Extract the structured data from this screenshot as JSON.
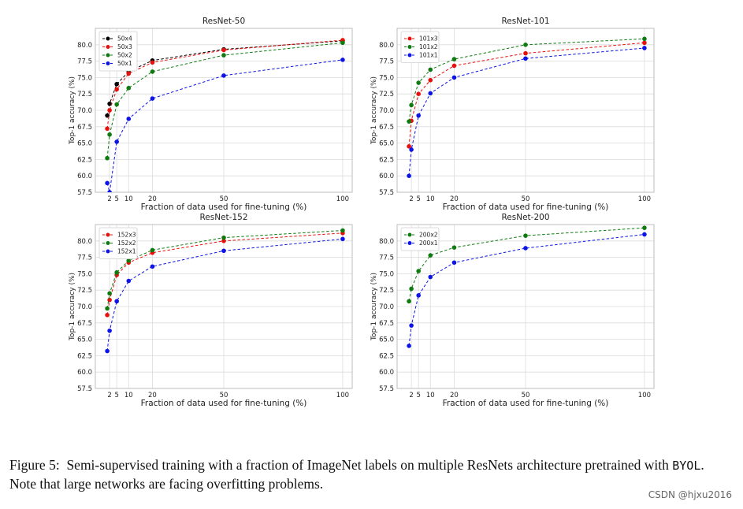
{
  "chart_data": [
    {
      "type": "line",
      "title": "ResNet-50",
      "xlabel": "Fraction of data used for fine-tuning (%)",
      "ylabel": "Top-1 accuracy (%)",
      "x": [
        1,
        2,
        5,
        10,
        20,
        50,
        100
      ],
      "xticks": [
        2,
        5,
        10,
        20,
        50,
        100
      ],
      "xtick_labels": [
        "2",
        "5",
        "10",
        "20",
        "50",
        "100"
      ],
      "xlim": [
        -4,
        104
      ],
      "ylim": [
        57.5,
        82.5
      ],
      "yticks": [
        57.5,
        60.0,
        62.5,
        65.0,
        67.5,
        70.0,
        72.5,
        75.0,
        77.5,
        80.0
      ],
      "ytick_labels": [
        "57.5",
        "60.0",
        "62.5",
        "65.0",
        "67.5",
        "70.0",
        "72.5",
        "75.0",
        "77.5",
        "80.0"
      ],
      "legend": "top-left",
      "series": [
        {
          "name": "50x4",
          "color": "#000000",
          "values": [
            69.2,
            71.0,
            74.0,
            75.9,
            77.6,
            79.3,
            80.6
          ]
        },
        {
          "name": "50x3",
          "color": "#e8100c",
          "values": [
            67.2,
            70.0,
            73.2,
            75.6,
            77.3,
            79.2,
            80.7
          ]
        },
        {
          "name": "50x2",
          "color": "#0f7a0f",
          "values": [
            62.7,
            66.3,
            70.9,
            73.4,
            75.9,
            78.4,
            80.3
          ]
        },
        {
          "name": "50x1",
          "color": "#0d14e6",
          "values": [
            58.9,
            57.5,
            65.2,
            68.7,
            71.8,
            75.3,
            77.7
          ]
        }
      ]
    },
    {
      "type": "line",
      "title": "ResNet-101",
      "xlabel": "Fraction of data used for fine-tuning (%)",
      "ylabel": "Top-1 accuracy (%)",
      "x": [
        1,
        2,
        5,
        10,
        20,
        50,
        100
      ],
      "xticks": [
        2,
        5,
        10,
        20,
        50,
        100
      ],
      "xtick_labels": [
        "2",
        "5",
        "10",
        "20",
        "50",
        "100"
      ],
      "xlim": [
        -4,
        104
      ],
      "ylim": [
        57.5,
        82.5
      ],
      "yticks": [
        57.5,
        60.0,
        62.5,
        65.0,
        67.5,
        70.0,
        72.5,
        75.0,
        77.5,
        80.0
      ],
      "ytick_labels": [
        "57.5",
        "60.0",
        "62.5",
        "65.0",
        "67.5",
        "70.0",
        "72.5",
        "75.0",
        "77.5",
        "80.0"
      ],
      "legend": "top-left",
      "series": [
        {
          "name": "101x3",
          "color": "#e8100c",
          "values": [
            64.5,
            68.4,
            72.5,
            74.6,
            76.8,
            78.7,
            80.3
          ]
        },
        {
          "name": "101x2",
          "color": "#0f7a0f",
          "values": [
            68.3,
            70.8,
            74.2,
            76.2,
            77.8,
            80.0,
            80.9
          ]
        },
        {
          "name": "101x1",
          "color": "#0d14e6",
          "values": [
            60.0,
            64.0,
            69.2,
            72.6,
            75.0,
            77.9,
            79.5
          ]
        }
      ]
    },
    {
      "type": "line",
      "title": "ResNet-152",
      "xlabel": "Fraction of data used for fine-tuning (%)",
      "ylabel": "Top-1 accuracy (%)",
      "x": [
        1,
        2,
        5,
        10,
        20,
        50,
        100
      ],
      "xticks": [
        2,
        5,
        10,
        20,
        50,
        100
      ],
      "xtick_labels": [
        "2",
        "5",
        "10",
        "20",
        "50",
        "100"
      ],
      "xlim": [
        -4,
        104
      ],
      "ylim": [
        57.5,
        82.5
      ],
      "yticks": [
        57.5,
        60.0,
        62.5,
        65.0,
        67.5,
        70.0,
        72.5,
        75.0,
        77.5,
        80.0
      ],
      "ytick_labels": [
        "57.5",
        "60.0",
        "62.5",
        "65.0",
        "67.5",
        "70.0",
        "72.5",
        "75.0",
        "77.5",
        "80.0"
      ],
      "legend": "top-left",
      "series": [
        {
          "name": "152x3",
          "color": "#e8100c",
          "values": [
            68.7,
            71.0,
            74.8,
            76.7,
            78.2,
            80.0,
            81.2
          ]
        },
        {
          "name": "152x2",
          "color": "#0f7a0f",
          "values": [
            69.7,
            72.0,
            75.2,
            77.0,
            78.6,
            80.5,
            81.6
          ]
        },
        {
          "name": "152x1",
          "color": "#0d14e6",
          "values": [
            63.2,
            66.3,
            70.8,
            73.9,
            76.1,
            78.5,
            80.3
          ]
        }
      ]
    },
    {
      "type": "line",
      "title": "ResNet-200",
      "xlabel": "Fraction of data used for fine-tuning (%)",
      "ylabel": "Top-1 accuracy (%)",
      "x": [
        1,
        2,
        5,
        10,
        20,
        50,
        100
      ],
      "xticks": [
        2,
        5,
        10,
        20,
        50,
        100
      ],
      "xtick_labels": [
        "2",
        "5",
        "10",
        "20",
        "50",
        "100"
      ],
      "xlim": [
        -4,
        104
      ],
      "ylim": [
        57.5,
        82.5
      ],
      "yticks": [
        57.5,
        60.0,
        62.5,
        65.0,
        67.5,
        70.0,
        72.5,
        75.0,
        77.5,
        80.0
      ],
      "ytick_labels": [
        "57.5",
        "60.0",
        "62.5",
        "65.0",
        "67.5",
        "70.0",
        "72.5",
        "75.0",
        "77.5",
        "80.0"
      ],
      "legend": "top-left",
      "series": [
        {
          "name": "200x2",
          "color": "#0f7a0f",
          "values": [
            70.8,
            72.7,
            75.4,
            77.8,
            79.0,
            80.8,
            82.0
          ]
        },
        {
          "name": "200x1",
          "color": "#0d14e6",
          "values": [
            64.0,
            67.1,
            71.7,
            74.5,
            76.7,
            78.9,
            81.0
          ]
        }
      ]
    }
  ],
  "caption": {
    "figure_label": "Figure 5:",
    "text_part1": "Semi-supervised training with a fraction of ImageNet labels on multiple ResNets architecture pretrained with ",
    "byol": "BYOL",
    "text_part2": ". Note that large networks are facing overfitting problems."
  },
  "watermark": "CSDN @hjxu2016"
}
